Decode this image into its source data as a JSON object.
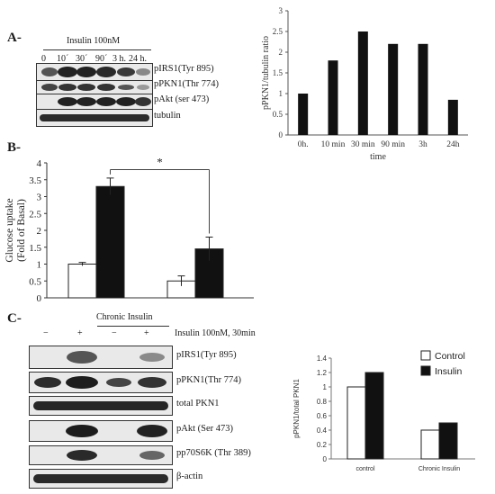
{
  "panel_a": {
    "letter": "A-",
    "treatment": "Insulin 100nM",
    "timepoints": [
      "0",
      "10´",
      "30´",
      "90´",
      "3 h.",
      "24 h."
    ],
    "blot_labels": [
      "pIRS1(Tyr 895)",
      "pPKN1(Thr 774)",
      "pAkt (ser 473)",
      "tubulin"
    ]
  },
  "panel_b": {
    "letter": "B-",
    "significance": "*"
  },
  "panel_c": {
    "letter": "C-",
    "chronic_label": "Chronic Insulin",
    "insulin_label": "Insulin 100nM, 30min",
    "signs": [
      "−",
      "+",
      "−",
      "+"
    ],
    "blot_labels": [
      "pIRS1(Tyr 895)",
      "pPKN1(Thr 774)",
      "total PKN1",
      "pAkt (Ser 473)",
      "pp70S6K (Thr 389)",
      "β-actin"
    ]
  },
  "chart_data": [
    {
      "type": "bar",
      "panel": "A",
      "categories": [
        "0h.",
        "10 min",
        "30 min",
        "90 min",
        "3h",
        "24h"
      ],
      "values": [
        1.0,
        1.8,
        2.5,
        2.2,
        2.2,
        0.85
      ],
      "xlabel": "time",
      "ylabel": "pPKN1/tubulin ratio",
      "ylim": [
        0,
        3
      ],
      "yticks": [
        "0",
        "0.5",
        "1",
        "1.5",
        "2",
        "2.5",
        "3"
      ],
      "grid": false,
      "colors": {
        "bar": "#111111"
      }
    },
    {
      "type": "bar",
      "panel": "B",
      "groups": 2,
      "series": [
        {
          "values": [
            1.0,
            0.5
          ],
          "errors": [
            0.05,
            0.15
          ],
          "color": "#ffffff"
        },
        {
          "values": [
            3.3,
            1.45
          ],
          "errors": [
            0.25,
            0.35
          ],
          "color": "#111111"
        }
      ],
      "ylabel": "Glucose uptake (Fold of Basal)",
      "ylim": [
        0,
        4
      ],
      "yticks": [
        "0",
        "0.5",
        "1",
        "1.5",
        "2",
        "2.5",
        "3",
        "3.5",
        "4"
      ],
      "annotation": "*",
      "grid": false
    },
    {
      "type": "bar",
      "panel": "C",
      "categories": [
        "control",
        "Chronic Insulin"
      ],
      "series": [
        {
          "name": "Control",
          "values": [
            1.0,
            0.4
          ],
          "color": "#ffffff"
        },
        {
          "name": "Insulin",
          "values": [
            1.2,
            0.5
          ],
          "color": "#111111"
        }
      ],
      "ylabel": "pPKN1/total PKN1",
      "ylim": [
        0,
        1.4
      ],
      "yticks": [
        "0",
        "0.2",
        "0.4",
        "0.6",
        "0.8",
        "1",
        "1.2",
        "1.4"
      ],
      "legend": "top-right",
      "grid": false
    }
  ]
}
